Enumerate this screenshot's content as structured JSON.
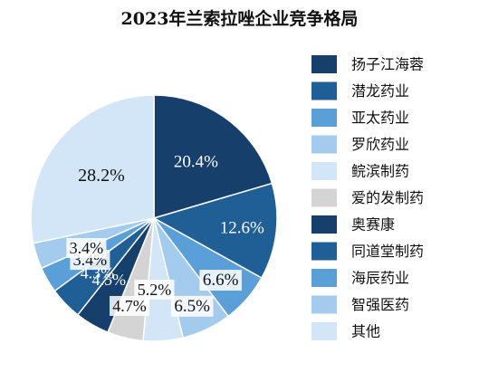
{
  "chart_data": {
    "type": "pie",
    "title": "2023年兰索拉唑企业竞争格局",
    "legend_position": "right",
    "slices": [
      {
        "name": "扬子江海蓉",
        "value": 20.4,
        "label": "20.4%",
        "color": "#173f6b"
      },
      {
        "name": "潜龙药业",
        "value": 12.6,
        "label": "12.6%",
        "color": "#1f5f96"
      },
      {
        "name": "亚太药业",
        "value": 6.6,
        "label": "6.6%",
        "color": "#5b9fd8"
      },
      {
        "name": "罗欣药业",
        "value": 6.5,
        "label": "6.5%",
        "color": "#a3cbee"
      },
      {
        "name": "鲩滨制药",
        "value": 5.2,
        "label": "5.2%",
        "color": "#d3e6f7"
      },
      {
        "name": "爱的发制药",
        "value": 4.7,
        "label": "4.7%",
        "color": "#d4d4d4"
      },
      {
        "name": "奥赛康",
        "value": 4.5,
        "label": "4.5%",
        "color": "#173f6b"
      },
      {
        "name": "同道堂制药",
        "value": 4.3,
        "label": "4.3%",
        "color": "#1f5f96"
      },
      {
        "name": "海辰药业",
        "value": 3.4,
        "label": "3.4%",
        "color": "#5b9fd8"
      },
      {
        "name": "智强医药",
        "value": 3.4,
        "label": "3.4%",
        "color": "#a3cbee"
      },
      {
        "name": "其他",
        "value": 28.2,
        "label": "28.2%",
        "color": "#d3e6f7"
      }
    ]
  }
}
